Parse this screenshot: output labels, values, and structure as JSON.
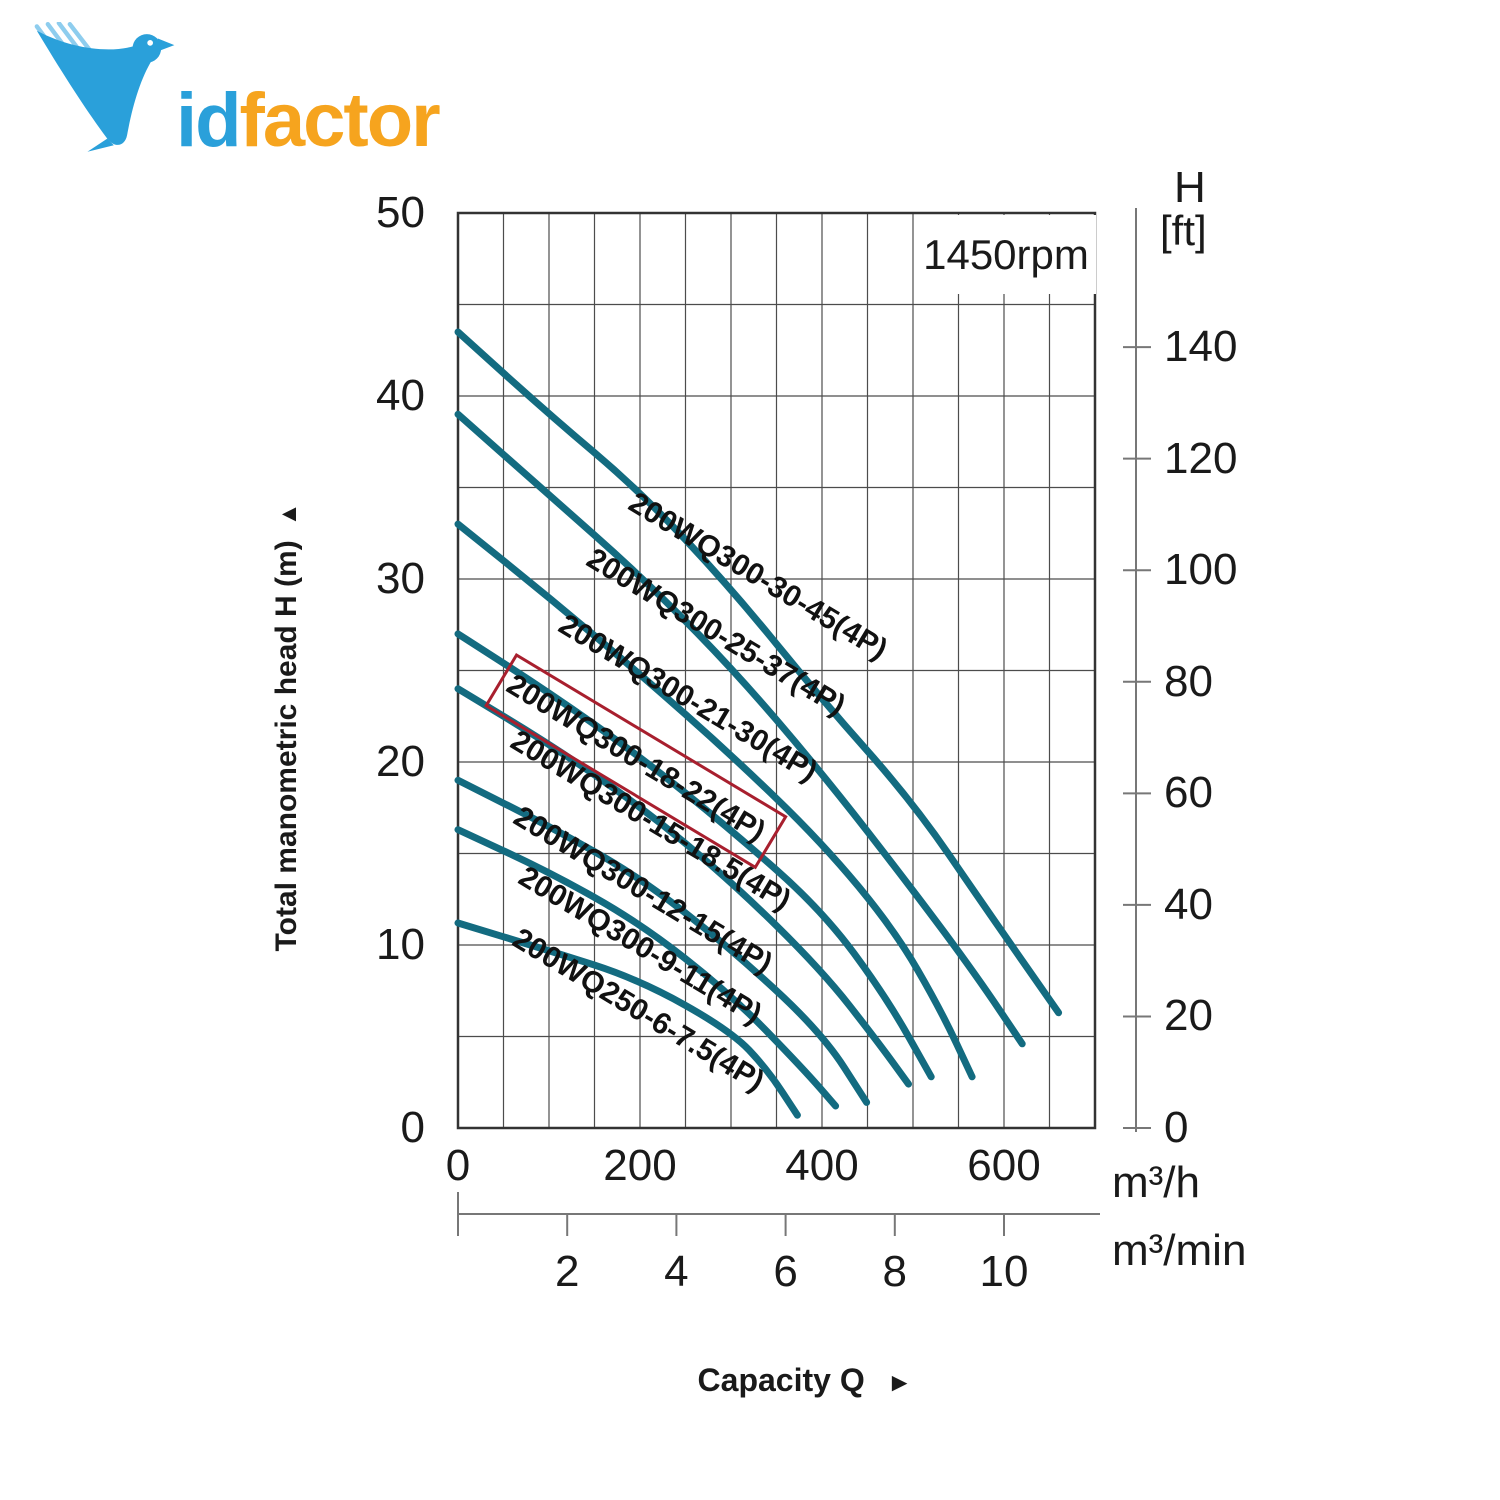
{
  "logo": {
    "brand_prefix": "id",
    "brand_suffix": "factor",
    "blue": "#2aa0da",
    "orange": "#f6a41e"
  },
  "labels": {
    "rpm": "1450rpm",
    "y_left_title": "Total manometric head H (m)",
    "x_title": "Capacity Q",
    "h_label": "H",
    "ft_label": "[ft]",
    "unit_m3h": "m³/h",
    "unit_m3min": "m³/min",
    "up_arrow": "▲",
    "right_arrow": "►"
  },
  "chart_data": {
    "type": "line",
    "title": "Submersible pump performance curves",
    "rpm": "1450rpm",
    "x_axis": {
      "label": "Capacity Q",
      "unit_primary": "m³/h",
      "unit_secondary": "m³/min",
      "range_m3h": [
        0,
        700
      ],
      "ticks_m3h": [
        0,
        200,
        400,
        600
      ],
      "ticks_m3min": [
        0,
        2,
        4,
        6,
        8,
        10
      ],
      "minor_grid_step_m3h": 50
    },
    "y_axis_left": {
      "label": "Total manometric head H (m)",
      "range": [
        0,
        50
      ],
      "ticks": [
        0,
        10,
        20,
        30,
        40,
        50
      ],
      "minor_grid_step_m": 5
    },
    "y_axis_right": {
      "label": "H",
      "unit": "[ft]",
      "ticks": [
        0,
        20,
        40,
        60,
        80,
        100,
        120,
        140
      ]
    },
    "grid": true,
    "curve_color": "#136b80",
    "highlight_color": "#a81f2e",
    "series": [
      {
        "name": "200WQ300-30-45(4P)",
        "highlighted": false,
        "points": [
          [
            0,
            43.5
          ],
          [
            100,
            39
          ],
          [
            200,
            34.8
          ],
          [
            300,
            29.5
          ],
          [
            400,
            23.4
          ],
          [
            500,
            17.8
          ],
          [
            580,
            12
          ],
          [
            660,
            6.3
          ]
        ]
      },
      {
        "name": "200WQ300-25-37(4P)",
        "highlighted": false,
        "points": [
          [
            0,
            39
          ],
          [
            100,
            34.6
          ],
          [
            200,
            30.2
          ],
          [
            300,
            25.2
          ],
          [
            400,
            19.4
          ],
          [
            500,
            13
          ],
          [
            570,
            8.3
          ],
          [
            620,
            4.6
          ]
        ]
      },
      {
        "name": "200WQ300-21-30(4P)",
        "highlighted": false,
        "points": [
          [
            0,
            33
          ],
          [
            100,
            29
          ],
          [
            200,
            24.8
          ],
          [
            300,
            20.4
          ],
          [
            400,
            15.6
          ],
          [
            480,
            10.8
          ],
          [
            530,
            6.5
          ],
          [
            565,
            2.8
          ]
        ]
      },
      {
        "name": "200WQ300-18-22(4P)",
        "highlighted": true,
        "points": [
          [
            0,
            27
          ],
          [
            100,
            23.8
          ],
          [
            200,
            20.3
          ],
          [
            300,
            16.3
          ],
          [
            400,
            11.9
          ],
          [
            470,
            7.2
          ],
          [
            520,
            2.8
          ]
        ]
      },
      {
        "name": "200WQ300-15-18.5(4P)",
        "highlighted": false,
        "points": [
          [
            0,
            24
          ],
          [
            100,
            21
          ],
          [
            200,
            17.6
          ],
          [
            300,
            13.5
          ],
          [
            400,
            8.6
          ],
          [
            460,
            4.8
          ],
          [
            495,
            2.4
          ]
        ]
      },
      {
        "name": "200WQ300-12-15(4P)",
        "highlighted": false,
        "points": [
          [
            0,
            19
          ],
          [
            100,
            16.5
          ],
          [
            200,
            13.7
          ],
          [
            300,
            9.8
          ],
          [
            400,
            5.2
          ],
          [
            449,
            1.4
          ]
        ]
      },
      {
        "name": "200WQ300-9-11(4P)",
        "highlighted": false,
        "points": [
          [
            0,
            16.3
          ],
          [
            100,
            14
          ],
          [
            200,
            11.2
          ],
          [
            300,
            7.3
          ],
          [
            380,
            3.2
          ],
          [
            415,
            1.2
          ]
        ]
      },
      {
        "name": "200WQ250-6-7.5(4P)",
        "highlighted": false,
        "points": [
          [
            0,
            11.2
          ],
          [
            100,
            9.7
          ],
          [
            200,
            8.1
          ],
          [
            300,
            5.3
          ],
          [
            340,
            3.2
          ],
          [
            373,
            0.7
          ]
        ]
      }
    ]
  }
}
